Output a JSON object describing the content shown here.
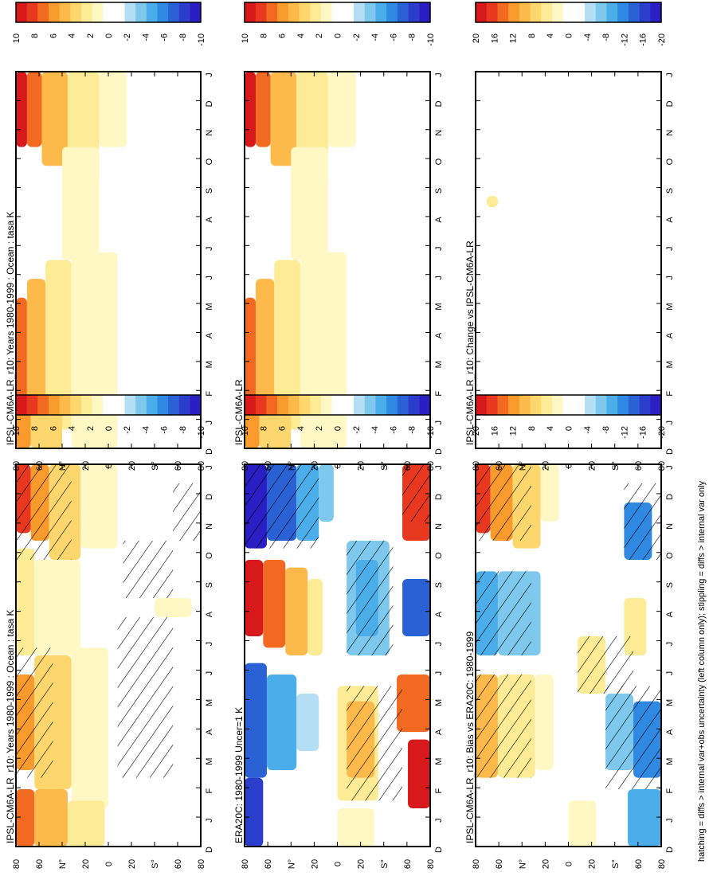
{
  "figure": {
    "footnote": "hatching = diffs > internal var+obs uncertainty (left column only); stippling = diffs > internal var only"
  },
  "palette": {
    "anomaly": [
      "#D7191C",
      "#E8381F",
      "#F26A21",
      "#F99A2D",
      "#FDBA4A",
      "#FDD66D",
      "#FDEB95",
      "#FFF8C4",
      "#FFFFFF",
      "#FFFFFF",
      "#B3DEF3",
      "#7EC8ED",
      "#4BAEEA",
      "#2F88E2",
      "#2A62D6",
      "#2A3ECB",
      "#2A1FC4"
    ]
  },
  "chart_data": [
    {
      "id": "top-left",
      "type": "contour",
      "title": "IPSL-CM6A-LR_r10: Years 1980-1999 : Ocean : tasa K",
      "months": [
        "D",
        "J",
        "F",
        "M",
        "A",
        "M",
        "J",
        "J",
        "A",
        "S",
        "O",
        "N",
        "D",
        "J"
      ],
      "lat_ticks": [
        "80",
        "60",
        "N°",
        "20",
        "0",
        "20",
        "S°",
        "60",
        "80"
      ],
      "colorbar_ticks": [
        "10",
        "8",
        "6",
        "4",
        "2",
        "0",
        "-2",
        "-4",
        "-6",
        "-8",
        "-10"
      ],
      "features": "warm anomaly near 80N decreasing southwards, hatching in northern high latitudes and mid southern latitudes"
    },
    {
      "id": "top-right",
      "type": "contour",
      "title": "IPSL-CM6A-LR_r10: Years 1980-1999 : Ocean : tasa K",
      "months": [
        "D",
        "J",
        "F",
        "M",
        "A",
        "M",
        "J",
        "J",
        "A",
        "S",
        "O",
        "N",
        "D",
        "J"
      ],
      "lat_ticks": [
        "80",
        "60",
        "N°",
        "20",
        "0",
        "20",
        "S°",
        "60",
        "80"
      ],
      "colorbar_ticks": [
        "10",
        "8",
        "6",
        "4",
        "2",
        "0",
        "-2",
        "-4",
        "-6",
        "-8",
        "-10"
      ],
      "features": "warm anomaly near 80N in northern winter months"
    },
    {
      "id": "mid-left",
      "type": "contour",
      "title": "ERA20C: 1980-1999 Uncer=1 K",
      "months": [
        "D",
        "J",
        "F",
        "M",
        "A",
        "M",
        "J",
        "J",
        "A",
        "S",
        "O",
        "N",
        "D",
        "J"
      ],
      "lat_ticks": [
        "80",
        "60",
        "N°",
        "20",
        "0",
        "20",
        "S°",
        "60",
        "80"
      ],
      "colorbar_ticks": [
        "10",
        "8",
        "6",
        "4",
        "2",
        "0",
        "-2",
        "-4",
        "-6",
        "-8",
        "-10"
      ],
      "features": "strong cold bias in northern winter, strong warm anomaly in northern summer, opposite sign in southern high latitudes"
    },
    {
      "id": "mid-right",
      "type": "contour",
      "title": "IPSL-CM6A-LR",
      "months": [
        "D",
        "J",
        "F",
        "M",
        "A",
        "M",
        "J",
        "J",
        "A",
        "S",
        "O",
        "N",
        "D",
        "J"
      ],
      "lat_ticks": [
        "80",
        "60",
        "N°",
        "20",
        "0",
        "20",
        "S°",
        "60",
        "80"
      ],
      "colorbar_ticks": [
        "10",
        "8",
        "6",
        "4",
        "2",
        "0",
        "-2",
        "-4",
        "-6",
        "-8",
        "-10"
      ],
      "features": "warm anomaly near 80N in northern winter months"
    },
    {
      "id": "bottom-left",
      "type": "contour",
      "title": "IPSL-CM6A-LR_r10: Bias vs ERA20C: 1980-1999",
      "months": [
        "D",
        "J",
        "F",
        "M",
        "A",
        "M",
        "J",
        "J",
        "A",
        "S",
        "O",
        "N",
        "D",
        "J"
      ],
      "lat_ticks": [
        "80",
        "60",
        "N°",
        "20",
        "0",
        "20",
        "S°",
        "60",
        "80"
      ],
      "colorbar_ticks": [
        "20",
        "16",
        "12",
        "8",
        "4",
        "0",
        "-4",
        "-8",
        "-12",
        "-16",
        "-20"
      ],
      "features": "warm bias in northern winter, cold bias in northern summer, mixed signal in southern latitudes"
    },
    {
      "id": "bottom-right",
      "type": "contour",
      "title": "IPSL-CM6A-LR_r10: Change vs IPSL-CM6A-LR",
      "months": [
        "D",
        "J",
        "F",
        "M",
        "A",
        "M",
        "J",
        "J",
        "A",
        "S",
        "O",
        "N",
        "D",
        "J"
      ],
      "lat_ticks": [
        "80",
        "60",
        "N°",
        "20",
        "0",
        "20",
        "S°",
        "60",
        "80"
      ],
      "colorbar_ticks": [
        "20",
        "16",
        "12",
        "8",
        "4",
        "0",
        "-4",
        "-8",
        "-12",
        "-16",
        "-20"
      ],
      "features": "near-zero change everywhere"
    }
  ]
}
